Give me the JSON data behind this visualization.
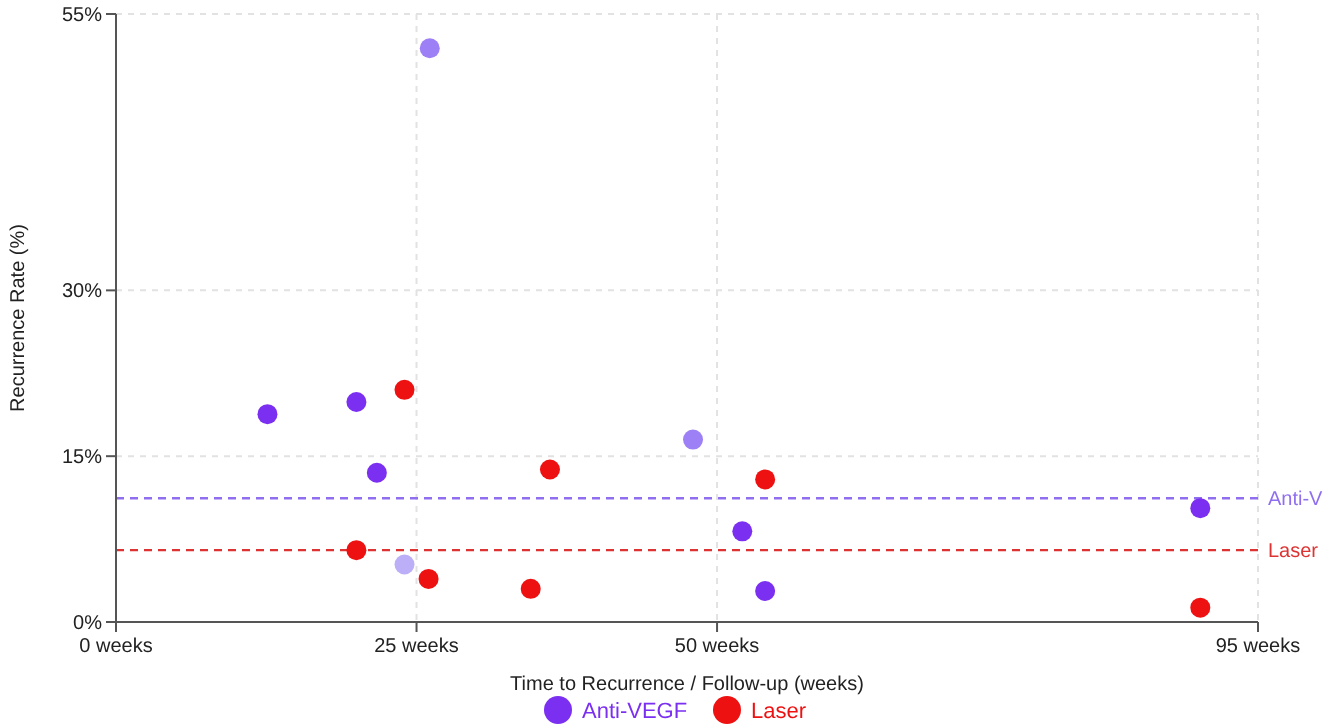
{
  "chart_data": {
    "type": "scatter",
    "xlabel": "Time to Recurrence / Follow-up (weeks)",
    "ylabel": "Recurrence Rate (%)",
    "xlim": [
      0,
      95
    ],
    "xticks": [
      {
        "value": 0,
        "label": "0 weeks"
      },
      {
        "value": 25,
        "label": "25 weeks"
      },
      {
        "value": 50,
        "label": "50 weeks"
      },
      {
        "value": 95,
        "label": "95 weeks"
      }
    ],
    "ylim": [
      0,
      55
    ],
    "yticks": [
      {
        "value": 0,
        "label": "0%"
      },
      {
        "value": 15,
        "label": "15%"
      },
      {
        "value": 30,
        "label": "30%"
      },
      {
        "value": 55,
        "label": "55%"
      }
    ],
    "grid": true,
    "legend": "bottom",
    "marker": "circle",
    "series": [
      {
        "name": "Anti-VEGF",
        "color": "#7b2ff0",
        "x": [
          26.1,
          12.6,
          20.0,
          21.7,
          24.0,
          48.0,
          52.1,
          54.0,
          90.2
        ],
        "values": [
          51.9,
          18.8,
          19.9,
          13.5,
          5.2,
          16.5,
          8.2,
          2.8,
          10.3
        ],
        "colors": [
          "#9d80f5",
          "#7b2ff0",
          "#7b2ff0",
          "#7b2ff0",
          "#bcaef7",
          "#9d80f5",
          "#7b2ff0",
          "#7b2ff0",
          "#7b2ff0"
        ]
      },
      {
        "name": "Laser",
        "color": "#ee1111",
        "x": [
          24.0,
          20.0,
          26.0,
          34.5,
          36.1,
          54.0,
          90.2
        ],
        "values": [
          21.0,
          6.5,
          3.9,
          3.0,
          13.8,
          12.9,
          1.3
        ]
      }
    ],
    "ref_lines": [
      {
        "axis": "y",
        "value": 11.2,
        "label": "Anti-V",
        "color": "#8f6ff0",
        "line_style": "dashed"
      },
      {
        "axis": "y",
        "value": 6.5,
        "label": "Laser",
        "color": "#dd3333",
        "line_style": "dashed"
      }
    ]
  }
}
